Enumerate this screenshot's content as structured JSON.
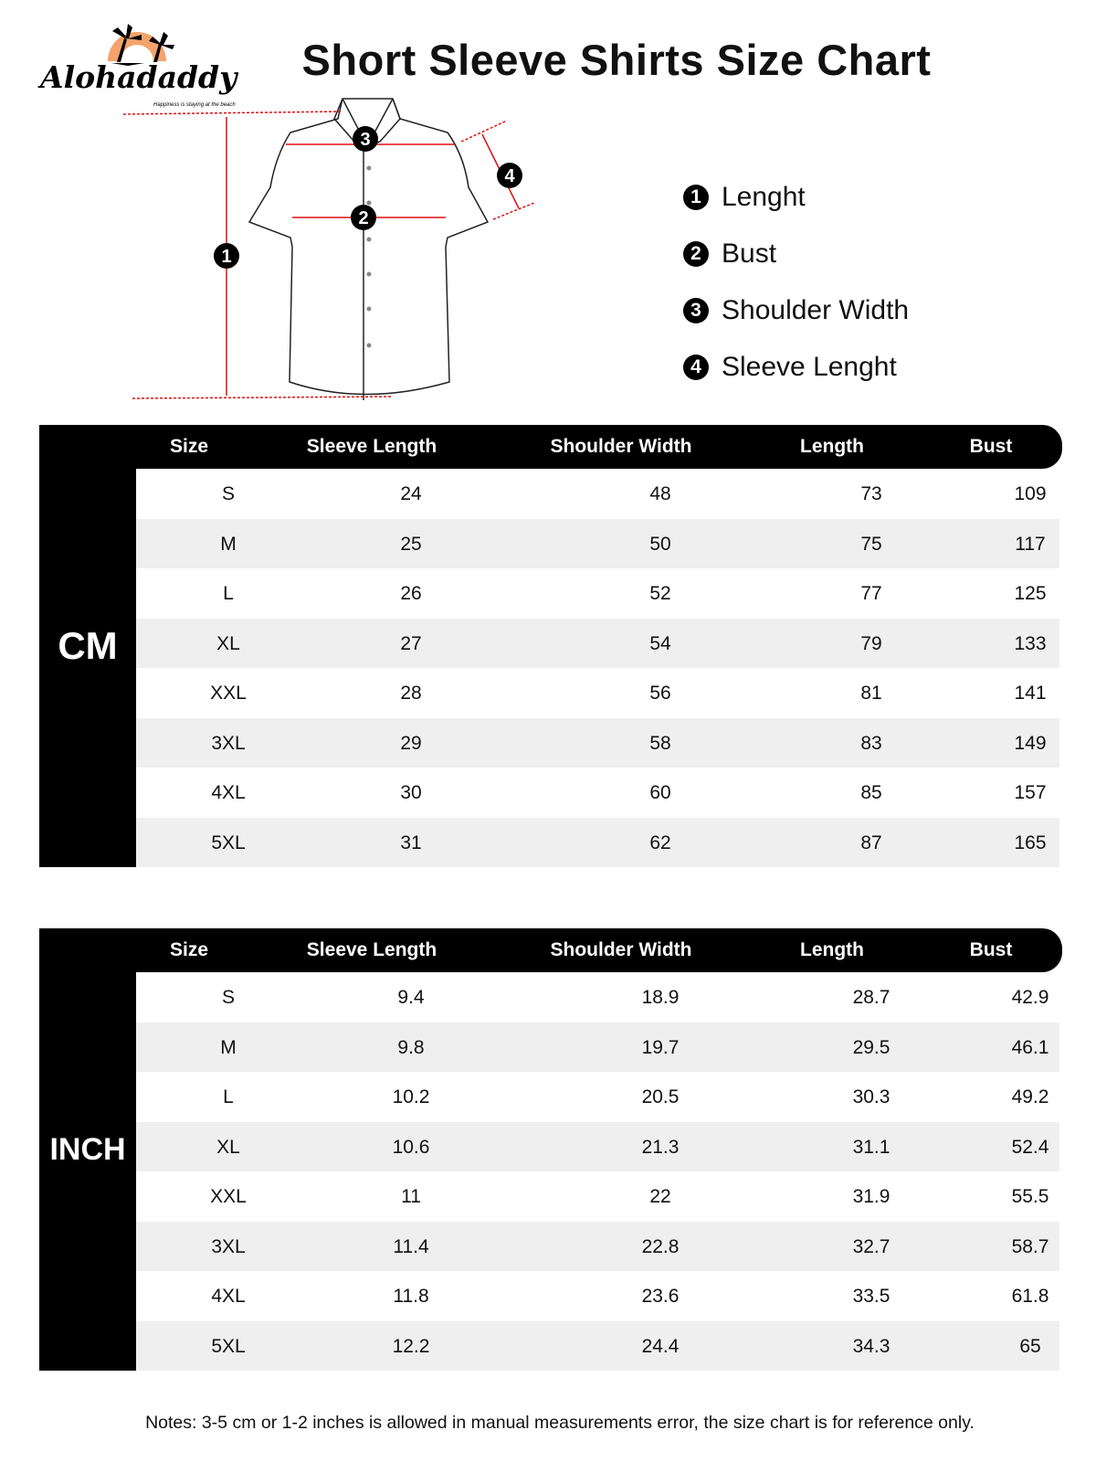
{
  "brand": {
    "name": "Alohadaddy",
    "tagline": "Happiness is staying at the beach",
    "accent": "#f4a36c"
  },
  "title": "Short Sleeve Shirts Size Chart",
  "diagram_markers": [
    "1",
    "2",
    "3",
    "4"
  ],
  "legend": [
    {
      "num": "1",
      "label": "Lenght"
    },
    {
      "num": "2",
      "label": "Bust"
    },
    {
      "num": "3",
      "label": "Shoulder Width"
    },
    {
      "num": "4",
      "label": "Sleeve Lenght"
    }
  ],
  "columns": [
    "Size",
    "Sleeve Length",
    "Shoulder Width",
    "Length",
    "Bust"
  ],
  "tables": [
    {
      "unit": "CM",
      "rows": [
        [
          "S",
          "24",
          "48",
          "73",
          "109"
        ],
        [
          "M",
          "25",
          "50",
          "75",
          "117"
        ],
        [
          "L",
          "26",
          "52",
          "77",
          "125"
        ],
        [
          "XL",
          "27",
          "54",
          "79",
          "133"
        ],
        [
          "XXL",
          "28",
          "56",
          "81",
          "141"
        ],
        [
          "3XL",
          "29",
          "58",
          "83",
          "149"
        ],
        [
          "4XL",
          "30",
          "60",
          "85",
          "157"
        ],
        [
          "5XL",
          "31",
          "62",
          "87",
          "165"
        ]
      ]
    },
    {
      "unit": "INCH",
      "rows": [
        [
          "S",
          "9.4",
          "18.9",
          "28.7",
          "42.9"
        ],
        [
          "M",
          "9.8",
          "19.7",
          "29.5",
          "46.1"
        ],
        [
          "L",
          "10.2",
          "20.5",
          "30.3",
          "49.2"
        ],
        [
          "XL",
          "10.6",
          "21.3",
          "31.1",
          "52.4"
        ],
        [
          "XXL",
          "11",
          "22",
          "31.9",
          "55.5"
        ],
        [
          "3XL",
          "11.4",
          "22.8",
          "32.7",
          "58.7"
        ],
        [
          "4XL",
          "11.8",
          "23.6",
          "33.5",
          "61.8"
        ],
        [
          "5XL",
          "12.2",
          "24.4",
          "34.3",
          "65"
        ]
      ]
    }
  ],
  "notes": "Notes: 3-5 cm or 1-2 inches is allowed in manual measurements error, the size chart is for reference only."
}
